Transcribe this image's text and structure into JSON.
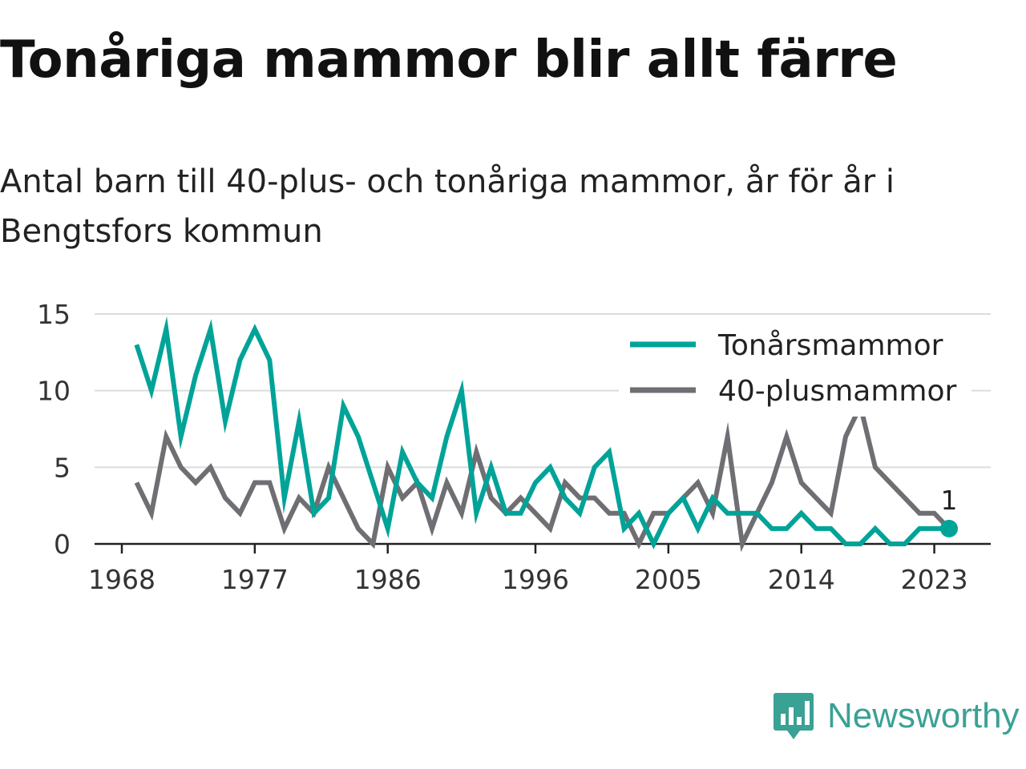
{
  "title": "Tonåriga mammor blir allt färre",
  "subtitle": "Antal barn till 40-plus- och tonåriga mammor, år för år i Bengtsfors kommun",
  "brand": {
    "name": "Newsworthy",
    "icon": "newsworthy-logo-icon",
    "color": "#3aa195"
  },
  "chart_data": {
    "type": "line",
    "title": "",
    "xlabel": "",
    "ylabel": "",
    "xlim": [
      1968,
      2024
    ],
    "ylim": [
      0,
      15
    ],
    "x_ticks": [
      1968,
      1977,
      1986,
      1996,
      2005,
      2014,
      2023
    ],
    "y_ticks": [
      0,
      5,
      10,
      15
    ],
    "grid": "horizontal",
    "legend": "top-right",
    "end_label": "1",
    "x": [
      1969,
      1970,
      1971,
      1972,
      1973,
      1974,
      1975,
      1976,
      1977,
      1978,
      1979,
      1980,
      1981,
      1982,
      1983,
      1984,
      1985,
      1986,
      1987,
      1988,
      1989,
      1990,
      1991,
      1992,
      1993,
      1994,
      1995,
      1996,
      1997,
      1998,
      1999,
      2000,
      2001,
      2002,
      2003,
      2004,
      2005,
      2006,
      2007,
      2008,
      2009,
      2010,
      2011,
      2012,
      2013,
      2014,
      2015,
      2016,
      2017,
      2018,
      2019,
      2020,
      2021,
      2022,
      2023,
      2024
    ],
    "series": [
      {
        "name": "Tonårsmammor",
        "color": "#00a398",
        "values": [
          13,
          10,
          14,
          7,
          11,
          14,
          8,
          12,
          14,
          12,
          3,
          8,
          2,
          3,
          9,
          7,
          4,
          1,
          6,
          4,
          3,
          7,
          10,
          2,
          5,
          2,
          2,
          4,
          5,
          3,
          2,
          5,
          6,
          1,
          2,
          0,
          2,
          3,
          1,
          3,
          2,
          2,
          2,
          1,
          1,
          2,
          1,
          1,
          0,
          0,
          1,
          0,
          0,
          1,
          1,
          1
        ]
      },
      {
        "name": "40-plusmammor",
        "color": "#6f6e73",
        "values": [
          4,
          2,
          7,
          5,
          4,
          5,
          3,
          2,
          4,
          4,
          1,
          3,
          2,
          5,
          3,
          1,
          0,
          5,
          3,
          4,
          1,
          4,
          2,
          6,
          3,
          2,
          3,
          2,
          1,
          4,
          3,
          3,
          2,
          2,
          0,
          2,
          2,
          3,
          4,
          2,
          7,
          0,
          2,
          4,
          7,
          4,
          3,
          2,
          7,
          9,
          5,
          4,
          3,
          2,
          2,
          1
        ]
      }
    ]
  }
}
